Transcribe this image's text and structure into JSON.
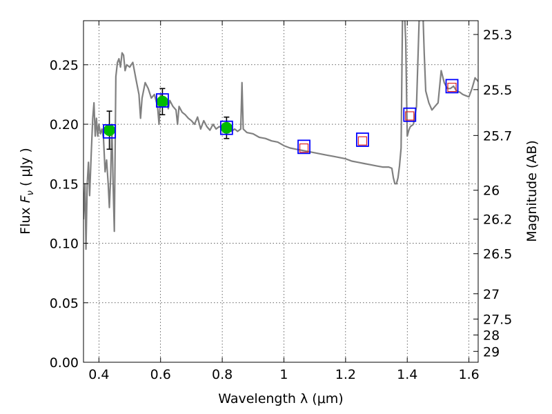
{
  "chart_data": {
    "type": "scatter",
    "xlabel": "Wavelength  λ (μm)",
    "ylabel": "Flux  F_ν  ( μJy )",
    "ylabel_parts": {
      "prefix": "Flux  ",
      "symbol": "F",
      "subscript": "ν",
      "suffix": "  ( μJy )"
    },
    "ylabel_right": "Magnitude (AB)",
    "xlim": [
      0.35,
      1.63
    ],
    "ylim": [
      0.0,
      0.287
    ],
    "grid": true,
    "x_ticks": [
      {
        "value": 0.4,
        "label": "0.4"
      },
      {
        "value": 0.6,
        "label": "0.6"
      },
      {
        "value": 0.8,
        "label": "0.8"
      },
      {
        "value": 1.0,
        "label": "1"
      },
      {
        "value": 1.2,
        "label": "1.2"
      },
      {
        "value": 1.4,
        "label": "1.4"
      },
      {
        "value": 1.6,
        "label": "1.6"
      }
    ],
    "y_ticks": [
      {
        "value": 0.0,
        "label": "0.00"
      },
      {
        "value": 0.05,
        "label": "0.05"
      },
      {
        "value": 0.1,
        "label": "0.10"
      },
      {
        "value": 0.15,
        "label": "0.15"
      },
      {
        "value": 0.2,
        "label": "0.20"
      },
      {
        "value": 0.25,
        "label": "0.25"
      }
    ],
    "right_ticks": [
      {
        "mag": 25.3,
        "label": "25.3"
      },
      {
        "mag": 25.5,
        "label": "25.5"
      },
      {
        "mag": 25.7,
        "label": "25.7"
      },
      {
        "mag": 26.0,
        "label": "26"
      },
      {
        "mag": 26.2,
        "label": "26.2"
      },
      {
        "mag": 26.5,
        "label": "26.5"
      },
      {
        "mag": 27.0,
        "label": "27"
      },
      {
        "mag": 27.5,
        "label": "27.5"
      },
      {
        "mag": 28.0,
        "label": "28"
      },
      {
        "mag": 29.0,
        "label": "29"
      }
    ],
    "colors": {
      "spectrum": "#808080",
      "observed": "#00bb00",
      "model_box": "#0000ff",
      "predicted_box": "#dd2222",
      "errorbar": "#000000"
    },
    "spectrum": [
      [
        0.35,
        0.12
      ],
      [
        0.355,
        0.15
      ],
      [
        0.358,
        0.095
      ],
      [
        0.362,
        0.15
      ],
      [
        0.366,
        0.168
      ],
      [
        0.37,
        0.14
      ],
      [
        0.375,
        0.175
      ],
      [
        0.38,
        0.205
      ],
      [
        0.384,
        0.218
      ],
      [
        0.388,
        0.19
      ],
      [
        0.392,
        0.205
      ],
      [
        0.396,
        0.19
      ],
      [
        0.4,
        0.2
      ],
      [
        0.405,
        0.192
      ],
      [
        0.41,
        0.196
      ],
      [
        0.415,
        0.188
      ],
      [
        0.42,
        0.16
      ],
      [
        0.425,
        0.17
      ],
      [
        0.43,
        0.15
      ],
      [
        0.434,
        0.13
      ],
      [
        0.438,
        0.155
      ],
      [
        0.442,
        0.2
      ],
      [
        0.446,
        0.15
      ],
      [
        0.45,
        0.11
      ],
      [
        0.455,
        0.24
      ],
      [
        0.46,
        0.252
      ],
      [
        0.465,
        0.255
      ],
      [
        0.47,
        0.248
      ],
      [
        0.475,
        0.26
      ],
      [
        0.48,
        0.258
      ],
      [
        0.485,
        0.245
      ],
      [
        0.49,
        0.25
      ],
      [
        0.5,
        0.248
      ],
      [
        0.51,
        0.252
      ],
      [
        0.52,
        0.238
      ],
      [
        0.53,
        0.225
      ],
      [
        0.535,
        0.205
      ],
      [
        0.54,
        0.222
      ],
      [
        0.55,
        0.235
      ],
      [
        0.56,
        0.23
      ],
      [
        0.57,
        0.222
      ],
      [
        0.58,
        0.225
      ],
      [
        0.59,
        0.215
      ],
      [
        0.595,
        0.2
      ],
      [
        0.6,
        0.225
      ],
      [
        0.61,
        0.222
      ],
      [
        0.62,
        0.218
      ],
      [
        0.625,
        0.213
      ],
      [
        0.63,
        0.22
      ],
      [
        0.64,
        0.215
      ],
      [
        0.65,
        0.212
      ],
      [
        0.655,
        0.2
      ],
      [
        0.66,
        0.215
      ],
      [
        0.67,
        0.21
      ],
      [
        0.68,
        0.208
      ],
      [
        0.69,
        0.205
      ],
      [
        0.7,
        0.203
      ],
      [
        0.71,
        0.2
      ],
      [
        0.72,
        0.206
      ],
      [
        0.73,
        0.196
      ],
      [
        0.74,
        0.203
      ],
      [
        0.75,
        0.198
      ],
      [
        0.76,
        0.195
      ],
      [
        0.77,
        0.2
      ],
      [
        0.78,
        0.196
      ],
      [
        0.79,
        0.198
      ],
      [
        0.8,
        0.197
      ],
      [
        0.81,
        0.195
      ],
      [
        0.82,
        0.197
      ],
      [
        0.83,
        0.194
      ],
      [
        0.84,
        0.196
      ],
      [
        0.85,
        0.194
      ],
      [
        0.86,
        0.196
      ],
      [
        0.864,
        0.235
      ],
      [
        0.868,
        0.196
      ],
      [
        0.88,
        0.193
      ],
      [
        0.9,
        0.192
      ],
      [
        0.92,
        0.189
      ],
      [
        0.94,
        0.188
      ],
      [
        0.96,
        0.186
      ],
      [
        0.98,
        0.185
      ],
      [
        1.0,
        0.182
      ],
      [
        1.02,
        0.18
      ],
      [
        1.04,
        0.179
      ],
      [
        1.06,
        0.178
      ],
      [
        1.08,
        0.177
      ],
      [
        1.1,
        0.176
      ],
      [
        1.12,
        0.175
      ],
      [
        1.14,
        0.174
      ],
      [
        1.16,
        0.173
      ],
      [
        1.18,
        0.172
      ],
      [
        1.2,
        0.171
      ],
      [
        1.22,
        0.169
      ],
      [
        1.24,
        0.168
      ],
      [
        1.26,
        0.167
      ],
      [
        1.28,
        0.166
      ],
      [
        1.3,
        0.165
      ],
      [
        1.32,
        0.164
      ],
      [
        1.34,
        0.164
      ],
      [
        1.35,
        0.163
      ],
      [
        1.355,
        0.155
      ],
      [
        1.36,
        0.15
      ],
      [
        1.365,
        0.15
      ],
      [
        1.37,
        0.155
      ],
      [
        1.375,
        0.165
      ],
      [
        1.38,
        0.18
      ],
      [
        1.385,
        0.3
      ],
      [
        1.39,
        0.3
      ],
      [
        1.395,
        0.27
      ],
      [
        1.4,
        0.19
      ],
      [
        1.405,
        0.195
      ],
      [
        1.41,
        0.198
      ],
      [
        1.42,
        0.2
      ],
      [
        1.43,
        0.215
      ],
      [
        1.44,
        0.3
      ],
      [
        1.45,
        0.3
      ],
      [
        1.455,
        0.26
      ],
      [
        1.46,
        0.228
      ],
      [
        1.47,
        0.218
      ],
      [
        1.48,
        0.212
      ],
      [
        1.49,
        0.215
      ],
      [
        1.5,
        0.218
      ],
      [
        1.51,
        0.245
      ],
      [
        1.52,
        0.235
      ],
      [
        1.53,
        0.23
      ],
      [
        1.54,
        0.23
      ],
      [
        1.55,
        0.232
      ],
      [
        1.56,
        0.228
      ],
      [
        1.57,
        0.227
      ],
      [
        1.58,
        0.225
      ],
      [
        1.59,
        0.224
      ],
      [
        1.6,
        0.223
      ],
      [
        1.61,
        0.23
      ],
      [
        1.62,
        0.239
      ],
      [
        1.63,
        0.236
      ]
    ],
    "observed": [
      {
        "x": 0.434,
        "y": 0.195,
        "err": 0.016
      },
      {
        "x": 0.606,
        "y": 0.219,
        "err": 0.011
      },
      {
        "x": 0.814,
        "y": 0.197,
        "err": 0.009
      }
    ],
    "model": [
      {
        "x": 0.434,
        "y": 0.194
      },
      {
        "x": 0.606,
        "y": 0.22
      },
      {
        "x": 0.814,
        "y": 0.197
      },
      {
        "x": 1.065,
        "y": 0.181
      },
      {
        "x": 1.255,
        "y": 0.187
      },
      {
        "x": 1.408,
        "y": 0.208
      },
      {
        "x": 1.545,
        "y": 0.232
      }
    ],
    "predicted": [
      {
        "x": 1.065,
        "y": 0.18
      },
      {
        "x": 1.255,
        "y": 0.186
      },
      {
        "x": 1.408,
        "y": 0.207
      },
      {
        "x": 1.545,
        "y": 0.231
      }
    ]
  }
}
